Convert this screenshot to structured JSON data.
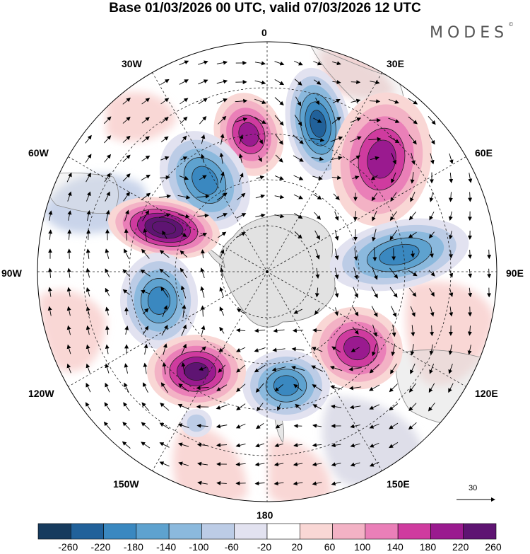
{
  "title": "Base 01/03/2026 00 UTC, valid 07/03/2026 12 UTC",
  "brand": {
    "name": "MODES",
    "mark": "©"
  },
  "graticule": {
    "lon_labels": [
      "0",
      "30E",
      "60E",
      "90E",
      "120E",
      "150E",
      "180",
      "150W",
      "120W",
      "90W",
      "60W",
      "30W"
    ]
  },
  "reference_vector": {
    "label": "30"
  },
  "colorbar": {
    "ticks": [
      "-260",
      "-220",
      "-180",
      "-140",
      "-100",
      "-60",
      "-20",
      "20",
      "60",
      "100",
      "140",
      "180",
      "220",
      "260"
    ],
    "colors": [
      "#173b5e",
      "#21619a",
      "#3a88c0",
      "#5ea2cf",
      "#8bb9dd",
      "#bccce6",
      "#e2e2f0",
      "#ffffff",
      "#f9d7d5",
      "#f3b2c5",
      "#ea7fb8",
      "#cf3b9f",
      "#9a1a8f",
      "#5e1472"
    ]
  },
  "anomalies": [
    {
      "name": "pos-anomaly-atlantic-west",
      "sign": "pos",
      "level": 4
    },
    {
      "name": "neg-anomaly-greenwich",
      "sign": "neg",
      "level": 5
    },
    {
      "name": "pos-anomaly-30e",
      "sign": "pos",
      "level": 4
    },
    {
      "name": "neg-anomaly-40w",
      "sign": "neg",
      "level": 4
    },
    {
      "name": "pos-anomaly-75w",
      "sign": "pos",
      "level": 6
    },
    {
      "name": "neg-anomaly-100w",
      "sign": "neg",
      "level": 4
    },
    {
      "name": "neg-anomaly-90e",
      "sign": "neg",
      "level": 4
    },
    {
      "name": "pos-anomaly-120e",
      "sign": "pos",
      "level": 4
    },
    {
      "name": "neg-anomaly-170e",
      "sign": "neg",
      "level": 4
    },
    {
      "name": "pos-anomaly-140w",
      "sign": "pos",
      "level": 5
    },
    {
      "name": "neg-anomaly-155w",
      "sign": "neg",
      "level": 1
    }
  ]
}
